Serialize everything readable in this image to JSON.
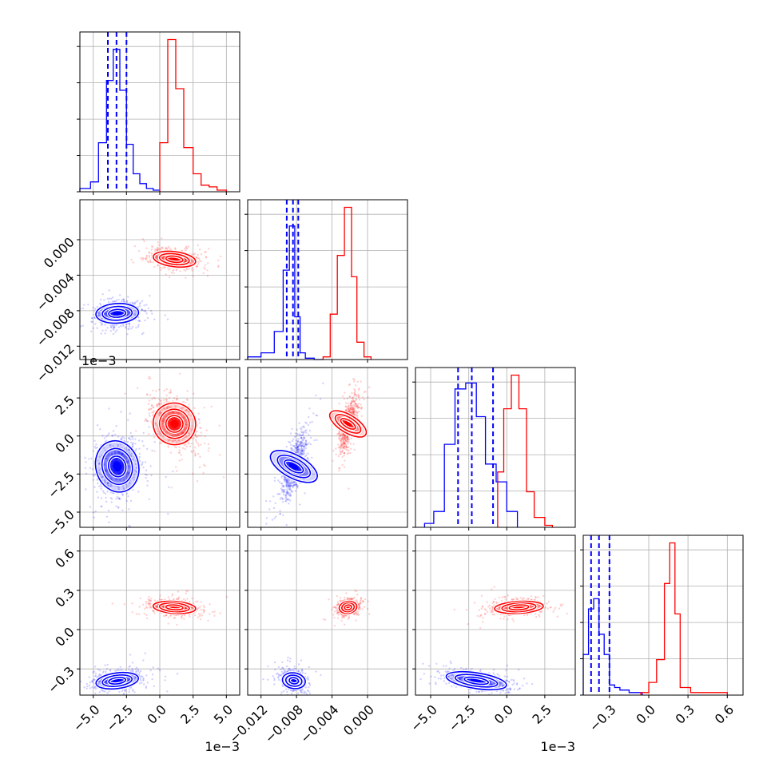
{
  "chart_data": {
    "type": "corner",
    "title": "",
    "grid": true,
    "series_colors": {
      "blue": "#0000ff",
      "red": "#ff0000"
    },
    "parameters": [
      {
        "index": 0,
        "range": [
          -6.0,
          6.0
        ],
        "ticks": [
          -5.0,
          -2.5,
          0.0,
          2.5,
          5.0
        ],
        "tick_labels": [
          "−5.0",
          "−2.5",
          "0.0",
          "2.5",
          "5.0"
        ],
        "offset": "1e−3"
      },
      {
        "index": 1,
        "range": [
          -0.0135,
          0.0045
        ],
        "ticks": [
          -0.012,
          -0.008,
          -0.004,
          0.0
        ],
        "tick_labels": [
          "−0.012",
          "−0.008",
          "−0.004",
          "0.000"
        ],
        "offset": ""
      },
      {
        "index": 2,
        "range": [
          -6.0,
          4.5
        ],
        "ticks": [
          -5.0,
          -2.5,
          0.0,
          2.5
        ],
        "tick_labels": [
          "−5.0",
          "−2.5",
          "0.0",
          "2.5"
        ],
        "offset": "1e−3"
      },
      {
        "index": 3,
        "range": [
          -0.5,
          0.72
        ],
        "ticks": [
          -0.3,
          0.0,
          0.3,
          0.6
        ],
        "tick_labels": [
          "−0.3",
          "0.0",
          "0.3",
          "0.6"
        ],
        "offset": ""
      }
    ],
    "blue_quantiles": [
      [
        -3.9,
        -3.25,
        -2.5
      ],
      [
        -0.0091,
        -0.0084,
        -0.0078
      ],
      [
        -3.2,
        -2.3,
        -0.9
      ],
      [
        -0.44,
        -0.38,
        -0.3
      ]
    ],
    "histograms": [
      {
        "param": 0,
        "blue": {
          "bins": [
            -6.0,
            -5.2,
            -4.6,
            -4.0,
            -3.5,
            -3.0,
            -2.5,
            -2.0,
            -1.5,
            -1.0,
            -0.5,
            0.0
          ],
          "counts": [
            0.02,
            0.06,
            0.3,
            0.68,
            0.87,
            0.62,
            0.29,
            0.11,
            0.05,
            0.02,
            0.01
          ]
        },
        "red": {
          "bins": [
            0.0,
            0.6,
            1.2,
            1.8,
            2.5,
            3.1,
            3.7,
            4.3,
            5.0
          ],
          "counts": [
            0.3,
            0.93,
            0.63,
            0.27,
            0.11,
            0.04,
            0.03,
            0.01
          ]
        }
      },
      {
        "param": 1,
        "blue": {
          "bins": [
            -0.0135,
            -0.012,
            -0.0105,
            -0.0095,
            -0.0088,
            -0.0082,
            -0.0076,
            -0.007,
            -0.006,
            -0.005
          ],
          "counts": [
            0.02,
            0.05,
            0.21,
            0.67,
            1.0,
            0.32,
            0.05,
            0.01,
            0.0
          ]
        },
        "red": {
          "bins": [
            -0.005,
            -0.0042,
            -0.0034,
            -0.0026,
            -0.0018,
            -0.0012,
            -0.0004,
            0.0004
          ],
          "counts": [
            0.02,
            0.34,
            0.78,
            1.14,
            0.62,
            0.13,
            0.02
          ]
        }
      },
      {
        "param": 2,
        "blue": {
          "bins": [
            -5.4,
            -4.8,
            -4.1,
            -3.4,
            -2.7,
            -2.0,
            -1.4,
            -0.7,
            0.0,
            0.7
          ],
          "counts": [
            0.02,
            0.08,
            0.42,
            0.7,
            0.73,
            0.56,
            0.32,
            0.23,
            0.08
          ]
        },
        "red": {
          "bins": [
            -0.6,
            -0.2,
            0.3,
            0.8,
            1.3,
            1.8,
            2.5,
            3.0
          ],
          "counts": [
            0.28,
            0.6,
            0.77,
            0.6,
            0.18,
            0.05,
            0.01
          ]
        }
      },
      {
        "param": 3,
        "blue": {
          "bins": [
            -0.5,
            -0.46,
            -0.42,
            -0.38,
            -0.34,
            -0.3,
            -0.26,
            -0.22,
            -0.15,
            -0.05
          ],
          "counts": [
            0.16,
            0.34,
            0.38,
            0.24,
            0.16,
            0.04,
            0.03,
            0.02,
            0.01
          ]
        },
        "red": {
          "bins": [
            -0.06,
            0.0,
            0.06,
            0.12,
            0.16,
            0.2,
            0.24,
            0.32,
            0.6
          ],
          "counts": [
            0.01,
            0.05,
            0.14,
            0.44,
            0.6,
            0.32,
            0.03,
            0.01
          ]
        }
      }
    ],
    "clusters": {
      "blue": {
        "means": [
          -3.2,
          -0.0083,
          -2.0,
          -0.39
        ],
        "sd": [
          0.8,
          0.00065,
          1.0,
          0.035
        ]
      },
      "red": {
        "means": [
          1.1,
          -0.0022,
          0.8,
          0.17
        ],
        "sd": [
          0.8,
          0.0005,
          0.8,
          0.027
        ]
      }
    }
  }
}
